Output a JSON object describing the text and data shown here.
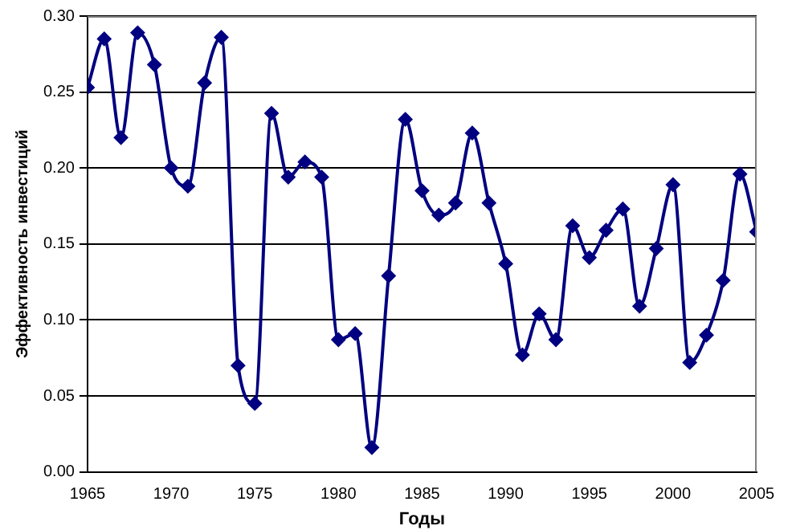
{
  "chart_data": {
    "type": "line",
    "xlabel": "Годы",
    "ylabel": "Эффективность инвестиций",
    "x": [
      1965,
      1966,
      1967,
      1968,
      1969,
      1970,
      1971,
      1972,
      1973,
      1974,
      1975,
      1976,
      1977,
      1978,
      1979,
      1980,
      1981,
      1982,
      1983,
      1984,
      1985,
      1986,
      1987,
      1988,
      1989,
      1990,
      1991,
      1992,
      1993,
      1994,
      1995,
      1996,
      1997,
      1998,
      1999,
      2000,
      2001,
      2002,
      2003,
      2004,
      2005
    ],
    "series": [
      {
        "color": "#000080",
        "values": [
          0.253,
          0.285,
          0.22,
          0.289,
          0.268,
          0.2,
          0.188,
          0.256,
          0.286,
          0.07,
          0.045,
          0.236,
          0.194,
          0.204,
          0.194,
          0.087,
          0.091,
          0.016,
          0.129,
          0.232,
          0.185,
          0.169,
          0.177,
          0.223,
          0.177,
          0.137,
          0.077,
          0.104,
          0.087,
          0.162,
          0.141,
          0.159,
          0.173,
          0.109,
          0.147,
          0.189,
          0.072,
          0.09,
          0.126,
          0.196,
          0.158
        ]
      }
    ],
    "xlim": [
      1965,
      2005
    ],
    "xticks": [
      1965,
      1970,
      1975,
      1980,
      1985,
      1990,
      1995,
      2000,
      2005
    ],
    "ylim": [
      0,
      0.3
    ],
    "yticks": [
      {
        "value": 0,
        "label": "0.00"
      },
      {
        "value": 0.05,
        "label": "0.05"
      },
      {
        "value": 0.1,
        "label": "0.10"
      },
      {
        "value": 0.15,
        "label": "0.15"
      },
      {
        "value": 0.2,
        "label": "0.20"
      },
      {
        "value": 0.25,
        "label": "0.25"
      },
      {
        "value": 0.3,
        "label": "0.30"
      }
    ],
    "grid": "y",
    "legend": false,
    "marker": "diamond",
    "line_style": "solid"
  }
}
